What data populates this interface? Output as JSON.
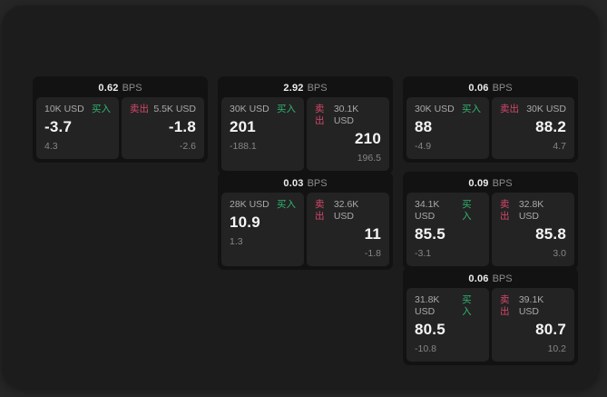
{
  "theme": {
    "outer_bg": "#262626",
    "panel_bg": "#1c1c1c",
    "card_bg": "#121212",
    "tile_bg": "#232323",
    "buy_color": "#2fb46f",
    "sell_color": "#d5476b"
  },
  "labels": {
    "buy": "买入",
    "sell": "卖出",
    "bps_unit": "BPS"
  },
  "cards": [
    {
      "bps": "0.62",
      "buy": {
        "size": "10K USD",
        "value": "-3.7",
        "sub": "4.3"
      },
      "sell": {
        "size": "5.5K USD",
        "value": "-1.8",
        "sub": "-2.6"
      }
    },
    {
      "bps": "2.92",
      "buy": {
        "size": "30K USD",
        "value": "201",
        "sub": "-188.1"
      },
      "sell": {
        "size": "30.1K USD",
        "value": "210",
        "sub": "196.5"
      }
    },
    {
      "bps": "0.03",
      "buy": {
        "size": "28K USD",
        "value": "10.9",
        "sub": "1.3"
      },
      "sell": {
        "size": "32.6K USD",
        "value": "11",
        "sub": "-1.8"
      }
    },
    {
      "bps": "0.06",
      "buy": {
        "size": "30K USD",
        "value": "88",
        "sub": "-4.9"
      },
      "sell": {
        "size": "30K USD",
        "value": "88.2",
        "sub": "4.7"
      }
    },
    {
      "bps": "0.09",
      "buy": {
        "size": "34.1K USD",
        "value": "85.5",
        "sub": "-3.1"
      },
      "sell": {
        "size": "32.8K USD",
        "value": "85.8",
        "sub": "3.0"
      }
    },
    {
      "bps": "0.06",
      "buy": {
        "size": "31.8K USD",
        "value": "80.5",
        "sub": "-10.8"
      },
      "sell": {
        "size": "39.1K USD",
        "value": "80.7",
        "sub": "10.2"
      }
    }
  ]
}
